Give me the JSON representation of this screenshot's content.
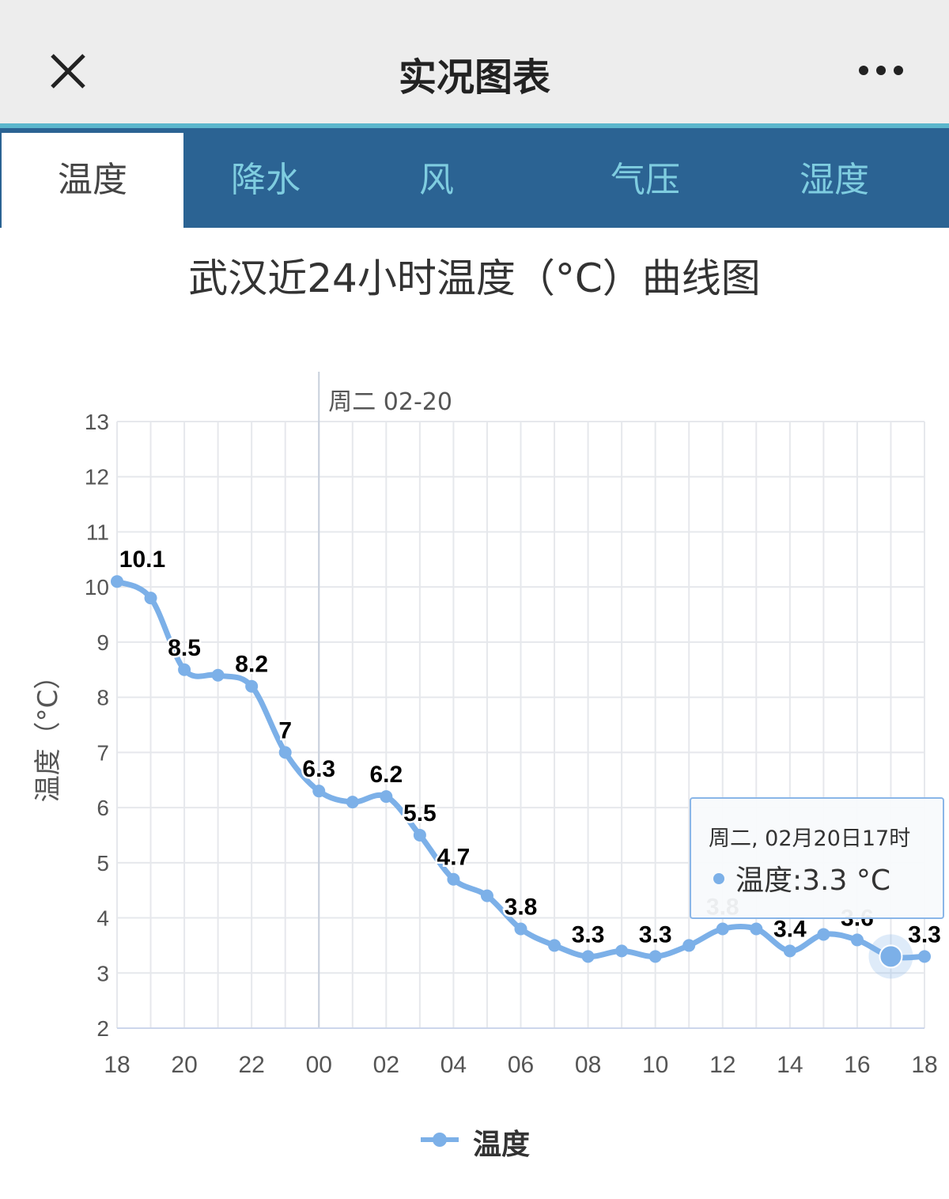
{
  "header": {
    "title": "实况图表",
    "close_icon": "close-icon",
    "more_icon": "more-icon"
  },
  "tabs": [
    {
      "label": "温度",
      "active": true
    },
    {
      "label": "降水"
    },
    {
      "label": "风"
    },
    {
      "label": "气压"
    },
    {
      "label": "湿度"
    }
  ],
  "colors": {
    "series": "#7cb0e8",
    "tab_bg": "#2b6393",
    "tab_text": "#7fcde0",
    "accent": "#5bb6cc"
  },
  "tooltip": {
    "header": "周二, 02月20日17时",
    "value": "温度:3.3 °C"
  },
  "chart_data": {
    "type": "line",
    "title": "武汉近24小时温度（°C）曲线图",
    "ylabel": "温度（°C）",
    "xlabel": "",
    "day_marker": "周二 02-20",
    "ylim": [
      2,
      13
    ],
    "yticks": [
      "2",
      "3",
      "4",
      "5",
      "6",
      "7",
      "8",
      "9",
      "10",
      "11",
      "12",
      "13"
    ],
    "xticks": [
      "18",
      "20",
      "22",
      "00",
      "02",
      "04",
      "06",
      "08",
      "10",
      "12",
      "14",
      "16",
      "18"
    ],
    "x": [
      "18",
      "19",
      "20",
      "21",
      "22",
      "23",
      "00",
      "01",
      "02",
      "03",
      "04",
      "05",
      "06",
      "07",
      "08",
      "09",
      "10",
      "11",
      "12",
      "13",
      "14",
      "15",
      "16",
      "17",
      "18"
    ],
    "series": [
      {
        "name": "温度",
        "values": [
          10.1,
          9.8,
          8.5,
          8.4,
          8.2,
          7,
          6.3,
          6.1,
          6.2,
          5.5,
          4.7,
          4.4,
          3.8,
          3.5,
          3.3,
          3.4,
          3.3,
          3.5,
          3.8,
          3.8,
          3.4,
          3.7,
          3.6,
          3.3,
          3.3
        ]
      }
    ],
    "data_labels": [
      {
        "i": 0,
        "text": "10.1"
      },
      {
        "i": 2,
        "text": "8.5"
      },
      {
        "i": 4,
        "text": "8.2"
      },
      {
        "i": 5,
        "text": "7"
      },
      {
        "i": 6,
        "text": "6.3"
      },
      {
        "i": 8,
        "text": "6.2"
      },
      {
        "i": 9,
        "text": "5.5"
      },
      {
        "i": 10,
        "text": "4.7"
      },
      {
        "i": 12,
        "text": "3.8"
      },
      {
        "i": 14,
        "text": "3.3"
      },
      {
        "i": 16,
        "text": "3.3"
      },
      {
        "i": 18,
        "text": "3.8"
      },
      {
        "i": 20,
        "text": "3.4"
      },
      {
        "i": 22,
        "text": "3.6"
      },
      {
        "i": 24,
        "text": "3.3"
      }
    ],
    "highlighted_index": 23,
    "legend": "bottom-center",
    "grid": true
  }
}
